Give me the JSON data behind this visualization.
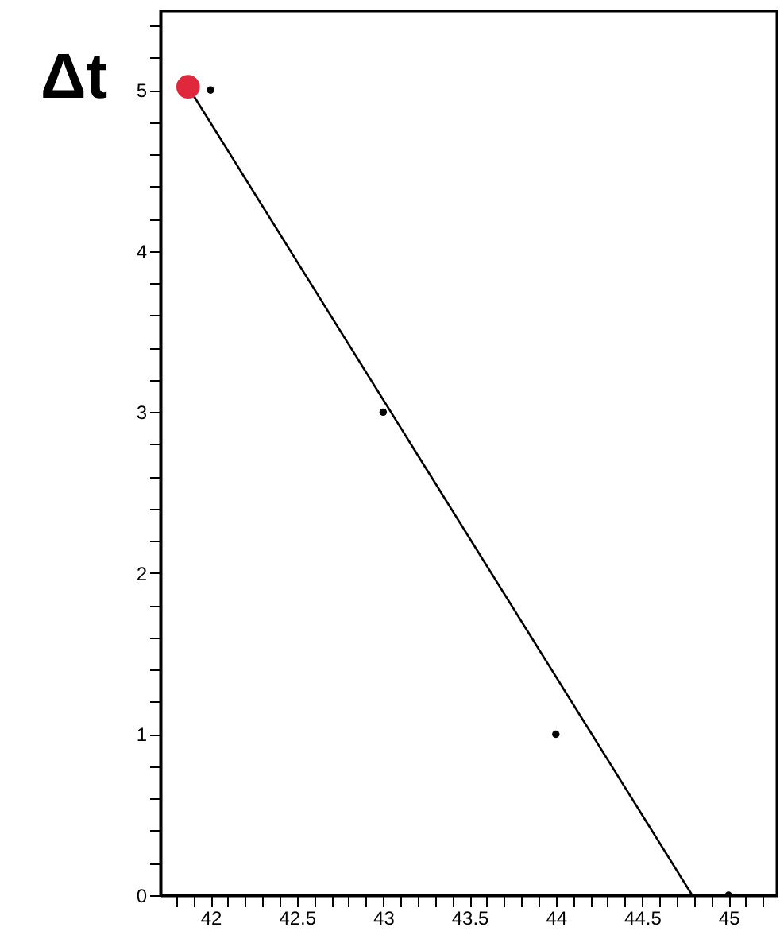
{
  "chart_data": {
    "type": "scatter",
    "ylabel": "Δt",
    "series": [
      {
        "color": "#000000",
        "x": [
          42,
          43,
          44,
          45
        ],
        "values": [
          5,
          3,
          1,
          0
        ]
      },
      {
        "type": "line",
        "marker": "none",
        "color": "#000000",
        "x": [
          41.87,
          44.79
        ],
        "values": [
          5.02,
          0
        ]
      },
      {
        "type": "scatter",
        "color": "#e0283c",
        "x": [
          41.87
        ],
        "values": [
          5.02
        ]
      }
    ],
    "xlim": [
      41.71,
      45.28
    ],
    "ylim": [
      0,
      5.49
    ],
    "xticks": [
      {
        "value": 41.8,
        "label": null
      },
      {
        "value": 41.9,
        "label": null
      },
      42,
      {
        "value": 42.1,
        "label": null
      },
      {
        "value": 42.2,
        "label": null
      },
      {
        "value": 42.3,
        "label": null
      },
      {
        "value": 42.4,
        "label": null
      },
      42.5,
      {
        "value": 42.6,
        "label": null
      },
      {
        "value": 42.7,
        "label": null
      },
      {
        "value": 42.8,
        "label": null
      },
      {
        "value": 42.9,
        "label": null
      },
      43,
      {
        "value": 43.1,
        "label": null
      },
      {
        "value": 43.2,
        "label": null
      },
      {
        "value": 43.3,
        "label": null
      },
      {
        "value": 43.4,
        "label": null
      },
      43.5,
      {
        "value": 43.6,
        "label": null
      },
      {
        "value": 43.7,
        "label": null
      },
      {
        "value": 43.8,
        "label": null
      },
      {
        "value": 43.9,
        "label": null
      },
      44,
      {
        "value": 44.1,
        "label": null
      },
      {
        "value": 44.2,
        "label": null
      },
      {
        "value": 44.3,
        "label": null
      },
      {
        "value": 44.4,
        "label": null
      },
      44.5,
      {
        "value": 44.6,
        "label": null
      },
      {
        "value": 44.7,
        "label": null
      },
      {
        "value": 44.8,
        "label": null
      },
      {
        "value": 44.9,
        "label": null
      },
      45,
      {
        "value": 45.1,
        "label": null
      },
      {
        "value": 45.2,
        "label": null
      }
    ],
    "yticks": [
      0,
      {
        "value": 0.2,
        "label": null
      },
      {
        "value": 0.4,
        "label": null
      },
      {
        "value": 0.6,
        "label": null
      },
      {
        "value": 0.8,
        "label": null
      },
      1,
      {
        "value": 1.2,
        "label": null
      },
      {
        "value": 1.4,
        "label": null
      },
      {
        "value": 1.6,
        "label": null
      },
      {
        "value": 1.8,
        "label": null
      },
      2,
      {
        "value": 2.2,
        "label": null
      },
      {
        "value": 2.4,
        "label": null
      },
      {
        "value": 2.6,
        "label": null
      },
      {
        "value": 2.8,
        "label": null
      },
      3,
      {
        "value": 3.2,
        "label": null
      },
      {
        "value": 3.4,
        "label": null
      },
      {
        "value": 3.6,
        "label": null
      },
      {
        "value": 3.8,
        "label": null
      },
      4,
      {
        "value": 4.2,
        "label": null
      },
      {
        "value": 4.4,
        "label": null
      },
      {
        "value": 4.6,
        "label": null
      },
      {
        "value": 4.8,
        "label": null
      },
      5,
      {
        "value": 5.2,
        "label": null
      },
      {
        "value": 5.4,
        "label": null
      }
    ],
    "grid": false,
    "legend": false,
    "marker": "circle",
    "line_style": "solid"
  }
}
